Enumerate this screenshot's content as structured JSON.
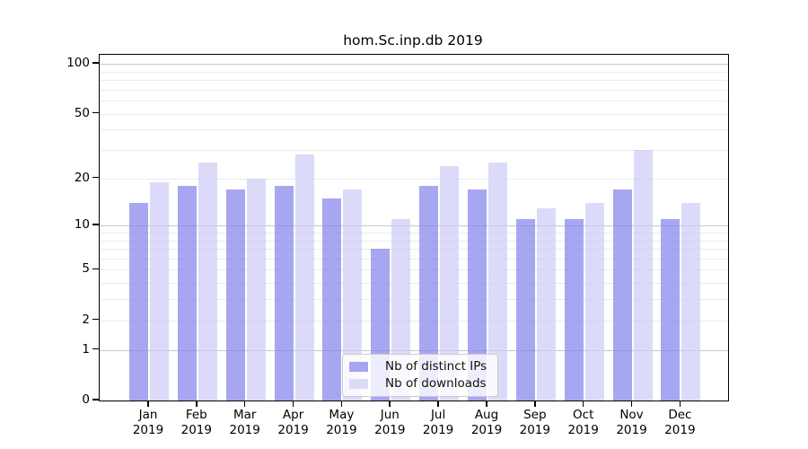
{
  "chart_data": {
    "type": "bar",
    "title": "hom.Sc.inp.db 2019",
    "y_scale": "log(1+x)",
    "ylim": [
      0,
      113
    ],
    "yticks": [
      100,
      50,
      20,
      10,
      5,
      2,
      1,
      0
    ],
    "grid": true,
    "legend_position": "lower center",
    "categories": [
      "Jan",
      "Feb",
      "Mar",
      "Apr",
      "May",
      "Jun",
      "Jul",
      "Aug",
      "Sep",
      "Oct",
      "Nov",
      "Dec"
    ],
    "year": "2019",
    "series": [
      {
        "name": "Nb of distinct IPs",
        "color": "#a5a5f0",
        "bar_rgba": "rgba(138,138,236,0.75)",
        "values": [
          14,
          18,
          17,
          18,
          15,
          7,
          18,
          17,
          11,
          11,
          17,
          11
        ]
      },
      {
        "name": "Nb of downloads",
        "color": "#dbdbf9",
        "bar_rgba": "rgba(204,204,246,0.7)",
        "values": [
          19,
          25,
          20,
          28,
          17,
          11,
          24,
          25,
          13,
          14,
          30,
          14
        ]
      }
    ]
  }
}
